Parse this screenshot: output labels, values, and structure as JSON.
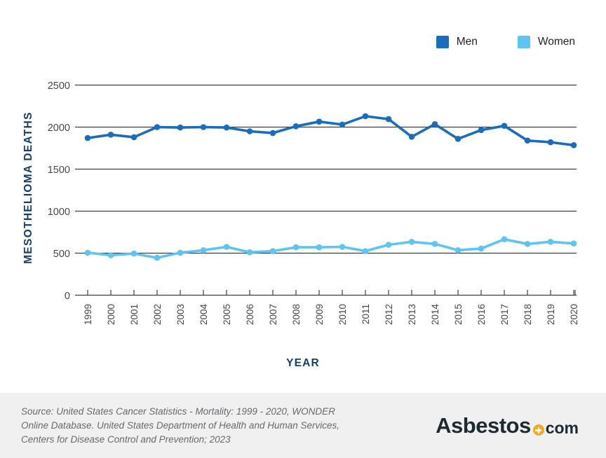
{
  "legend": {
    "men_label": "Men",
    "women_label": "Women"
  },
  "chart_data": {
    "type": "line",
    "x": [
      1999,
      2000,
      2001,
      2002,
      2003,
      2004,
      2005,
      2006,
      2007,
      2008,
      2009,
      2010,
      2011,
      2012,
      2013,
      2014,
      2015,
      2016,
      2017,
      2018,
      2019,
      2020
    ],
    "series": [
      {
        "name": "Men",
        "color": "#1a6cbc",
        "values": [
          1870,
          1910,
          1880,
          2000,
          1995,
          2000,
          1995,
          1950,
          1930,
          2010,
          2065,
          2030,
          2130,
          2095,
          1885,
          2035,
          1860,
          1965,
          2015,
          1840,
          1820,
          1785
        ]
      },
      {
        "name": "Women",
        "color": "#5dc5f0",
        "values": [
          505,
          475,
          495,
          445,
          505,
          535,
          575,
          510,
          525,
          570,
          570,
          575,
          525,
          600,
          635,
          610,
          535,
          555,
          665,
          610,
          635,
          615
        ]
      }
    ],
    "xlabel": "YEAR",
    "ylabel": "MESOTHELIOMA DEATHS",
    "ylim": [
      0,
      2500
    ],
    "yticks": [
      0,
      500,
      1000,
      1500,
      2000,
      2500
    ],
    "grid": "horizontal",
    "legend_position": "top-right",
    "gridline_color": "#3d3d3d",
    "tick_label_color": "#47474c",
    "axis_title_color": "#163e66"
  },
  "footer": {
    "source_lines": [
      "Source: United States Cancer Statistics - Mortality: 1999 - 2020, WONDER",
      "Online Database. United States Department of Health and Human Services,",
      "Centers for Disease Control and Prevention; 2023"
    ],
    "logo_text": "Asbestos",
    "logo_suffix": "com",
    "logo_dot_icon": "plus-circle",
    "logo_accent_color": "#f7a823",
    "footer_bg_color": "#f0f0f1"
  }
}
